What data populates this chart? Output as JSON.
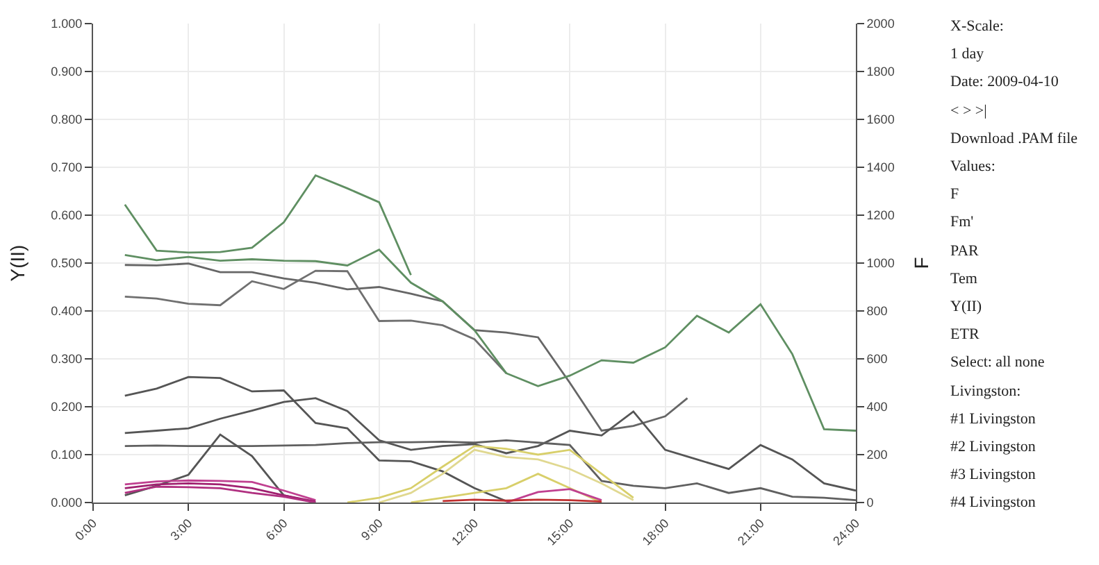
{
  "chart_data": {
    "type": "line",
    "ylabel": "Y(II)",
    "y2label": "F",
    "xlim": [
      0,
      24
    ],
    "xticks": [
      {
        "value": 0,
        "label": "0:00"
      },
      {
        "value": 3,
        "label": "3:00"
      },
      {
        "value": 6,
        "label": "6:00"
      },
      {
        "value": 9,
        "label": "9:00"
      },
      {
        "value": 12,
        "label": "12:00"
      },
      {
        "value": 15,
        "label": "15:00"
      },
      {
        "value": 18,
        "label": "18:00"
      },
      {
        "value": 21,
        "label": "21:00"
      },
      {
        "value": 24,
        "label": "24:00"
      }
    ],
    "ylim": [
      0,
      1
    ],
    "yticks": [
      {
        "value": 0,
        "label": "0.000"
      },
      {
        "value": 0.1,
        "label": "0.100"
      },
      {
        "value": 0.2,
        "label": "0.200"
      },
      {
        "value": 0.3,
        "label": "0.300"
      },
      {
        "value": 0.4,
        "label": "0.400"
      },
      {
        "value": 0.5,
        "label": "0.500"
      },
      {
        "value": 0.6,
        "label": "0.600"
      },
      {
        "value": 0.7,
        "label": "0.700"
      },
      {
        "value": 0.8,
        "label": "0.800"
      },
      {
        "value": 0.9,
        "label": "0.900"
      },
      {
        "value": 1,
        "label": "1.000"
      }
    ],
    "y2lim": [
      0,
      2000
    ],
    "y2ticks": [
      0,
      200,
      400,
      600,
      800,
      1000,
      1200,
      1400,
      1600,
      1800,
      2000
    ],
    "grid": true,
    "marker": "none",
    "line_style": "solid",
    "series": [
      {
        "color": "#5f8f62",
        "x": [
          1,
          2,
          3,
          4,
          5,
          6,
          7,
          8,
          9,
          10
        ],
        "values": [
          0.622,
          0.526,
          0.522,
          0.523,
          0.532,
          0.585,
          0.683,
          0.656,
          0.627,
          0.475
        ]
      },
      {
        "color": "#5f8f62",
        "axis": "y2",
        "x": [
          1,
          2,
          3,
          4,
          5,
          6,
          7,
          8,
          9,
          10,
          11,
          12,
          13,
          14,
          15,
          16,
          17,
          18,
          19,
          20,
          21,
          22,
          23,
          24
        ],
        "values": [
          1034,
          1012,
          1026,
          1010,
          1016,
          1010,
          1008,
          990,
          1056,
          918,
          840,
          720,
          540,
          486,
          530,
          594,
          584,
          648,
          780,
          710,
          828,
          620,
          306,
          300
        ]
      },
      {
        "color": "#666666",
        "x": [
          1,
          2,
          3,
          4,
          5,
          6,
          7,
          8,
          9,
          10,
          11,
          12,
          13,
          14,
          15,
          16,
          17,
          18,
          18.7
        ],
        "values": [
          0.496,
          0.495,
          0.499,
          0.481,
          0.481,
          0.468,
          0.459,
          0.445,
          0.45,
          0.436,
          0.42,
          0.36,
          0.355,
          0.345,
          0.25,
          0.15,
          0.16,
          0.18,
          0.218
        ]
      },
      {
        "color": "#707070",
        "x": [
          1,
          2,
          3,
          4,
          5,
          6,
          7,
          8,
          9,
          10,
          11,
          12,
          13
        ],
        "values": [
          0.43,
          0.426,
          0.415,
          0.412,
          0.462,
          0.446,
          0.484,
          0.483,
          0.379,
          0.38,
          0.37,
          0.341,
          0.27
        ]
      },
      {
        "color": "#555555",
        "x": [
          1,
          2,
          3,
          4,
          5,
          6,
          7,
          8,
          9,
          10,
          11,
          12,
          13
        ],
        "values": [
          0.223,
          0.238,
          0.262,
          0.26,
          0.232,
          0.234,
          0.166,
          0.155,
          0.088,
          0.086,
          0.065,
          0.03,
          0.003
        ]
      },
      {
        "color": "#555555",
        "x": [
          1,
          2,
          3,
          4,
          5,
          6,
          7,
          8,
          9,
          10,
          11,
          12,
          13,
          14,
          15,
          16,
          17,
          18,
          19,
          20,
          21,
          22,
          23,
          24
        ],
        "values": [
          0.145,
          0.15,
          0.155,
          0.175,
          0.192,
          0.21,
          0.218,
          0.191,
          0.13,
          0.11,
          0.118,
          0.122,
          0.103,
          0.118,
          0.15,
          0.14,
          0.19,
          0.11,
          0.09,
          0.07,
          0.12,
          0.09,
          0.04,
          0.025
        ]
      },
      {
        "color": "#606060",
        "x": [
          1,
          2,
          3,
          4,
          5,
          6,
          7,
          8,
          9,
          10,
          11,
          12,
          13,
          14,
          15,
          16,
          17,
          18,
          19,
          20,
          21,
          22,
          23,
          24
        ],
        "values": [
          0.118,
          0.119,
          0.118,
          0.118,
          0.118,
          0.119,
          0.12,
          0.124,
          0.126,
          0.126,
          0.127,
          0.125,
          0.13,
          0.125,
          0.12,
          0.045,
          0.035,
          0.03,
          0.04,
          0.02,
          0.03,
          0.012,
          0.01,
          0.005
        ]
      },
      {
        "color": "#555555",
        "x": [
          1,
          2,
          3,
          4,
          5,
          6,
          7
        ],
        "values": [
          0.015,
          0.035,
          0.058,
          0.142,
          0.097,
          0.015,
          0.0
        ]
      },
      {
        "color": "#d8cf6a",
        "x": [
          8,
          9,
          10,
          11,
          12,
          13,
          14,
          15,
          16,
          17
        ],
        "values": [
          0.0,
          0.01,
          0.03,
          0.075,
          0.118,
          0.112,
          0.1,
          0.11,
          0.06,
          0.01
        ]
      },
      {
        "color": "#e0d890",
        "x": [
          9,
          10,
          11,
          12,
          13,
          14,
          15,
          16,
          17
        ],
        "values": [
          0.0,
          0.02,
          0.06,
          0.11,
          0.095,
          0.09,
          0.07,
          0.04,
          0.005
        ]
      },
      {
        "color": "#d8cf6a",
        "x": [
          10,
          11,
          12,
          13,
          14,
          15,
          16
        ],
        "values": [
          0.0,
          0.01,
          0.02,
          0.03,
          0.06,
          0.03,
          0.0
        ]
      },
      {
        "color": "#c04090",
        "x": [
          1,
          2,
          3,
          4,
          5,
          6,
          7
        ],
        "values": [
          0.038,
          0.044,
          0.046,
          0.045,
          0.043,
          0.025,
          0.005
        ]
      },
      {
        "color": "#a02070",
        "x": [
          1,
          2,
          3,
          4,
          5,
          6,
          7
        ],
        "values": [
          0.03,
          0.038,
          0.04,
          0.038,
          0.03,
          0.015,
          0.002
        ]
      },
      {
        "color": "#b03080",
        "x": [
          1,
          2,
          3,
          4,
          5,
          6,
          7
        ],
        "values": [
          0.02,
          0.033,
          0.032,
          0.03,
          0.02,
          0.012,
          0.0
        ]
      },
      {
        "color": "#c04090",
        "x": [
          13,
          14,
          15,
          16
        ],
        "values": [
          0.0,
          0.022,
          0.028,
          0.005
        ]
      },
      {
        "color": "#c03030",
        "x": [
          11,
          12,
          13,
          14,
          15,
          16
        ],
        "values": [
          0.003,
          0.006,
          0.004,
          0.006,
          0.005,
          0.002
        ]
      }
    ],
    "annotations": [
      "X-Scale:",
      "1 day",
      "Date: 2009-04-10",
      "< > >|",
      "Download .PAM file",
      "Values:",
      "F",
      "Fm'",
      "PAR",
      "Tem",
      "Y(II)",
      "ETR",
      "Select: all none",
      "Livingston:",
      "#1 Livingston",
      "#2 Livingston",
      "#3 Livingston",
      "#4 Livingston"
    ]
  }
}
